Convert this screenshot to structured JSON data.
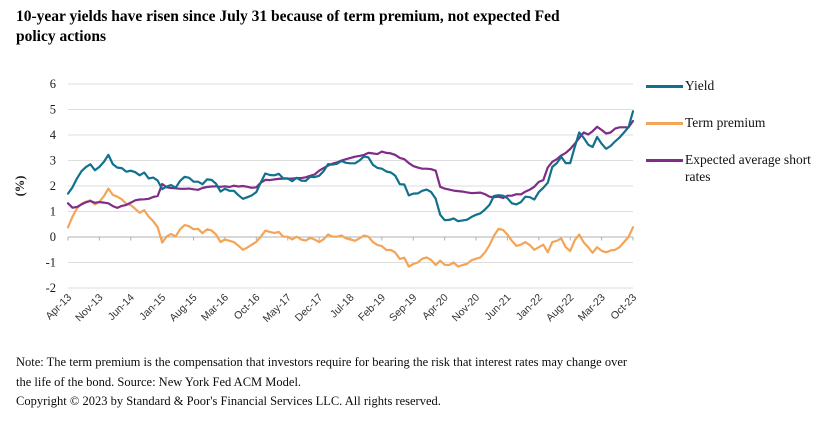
{
  "title": {
    "line1": "10-year yields have risen since July 31 because of term premium, not expected Fed",
    "line2": "policy actions"
  },
  "footer": {
    "note_line1": "Note: The term premium is the compensation that investors require for bearing the risk that interest rates may change over",
    "note_line2": "the life of the bond. Source: New York Fed ACM Model.",
    "copyright": "Copyright © 2023 by Standard & Poor's Financial Services LLC. All rights reserved."
  },
  "colors": {
    "yield": "#10718c",
    "term_premium": "#f3a457",
    "expected_short_rates": "#7f2d88",
    "gridline": "#dedede",
    "zero_axis": "#b0b0b0"
  },
  "chart_data": {
    "type": "line",
    "title": "10-year yields have risen since July 31 because of term premium, not expected Fed policy actions",
    "xlabel": "",
    "ylabel": "(%)",
    "ylim": [
      -2,
      6
    ],
    "yticks": [
      6,
      5,
      4,
      3,
      2,
      1,
      0,
      -1,
      -2
    ],
    "grid": true,
    "legend_position": "right",
    "x_frequency": "monthly",
    "x_range": "Apr-2013 to Oct-2023",
    "x_tick_labels": [
      "Apr-13",
      "Nov-13",
      "Jun-14",
      "Jan-15",
      "Aug-15",
      "Mar-16",
      "Oct-16",
      "May-17",
      "Dec-17",
      "Jul-18",
      "Feb-19",
      "Sep-19",
      "Apr-20",
      "Nov-20",
      "Jun-21",
      "Jan-22",
      "Aug-22",
      "Mar-23",
      "Oct-23"
    ],
    "x_label_interval_months": 7,
    "series": [
      {
        "name": "Yield",
        "color": "#10718c",
        "values": [
          1.7,
          1.95,
          2.3,
          2.58,
          2.74,
          2.85,
          2.62,
          2.75,
          2.95,
          3.22,
          2.86,
          2.72,
          2.7,
          2.56,
          2.6,
          2.54,
          2.42,
          2.53,
          2.3,
          2.33,
          2.21,
          1.88,
          1.98,
          2.04,
          1.93,
          2.2,
          2.36,
          2.32,
          2.17,
          2.17,
          2.07,
          2.26,
          2.24,
          2.09,
          1.78,
          1.89,
          1.81,
          1.81,
          1.64,
          1.5,
          1.56,
          1.63,
          1.76,
          2.14,
          2.49,
          2.43,
          2.42,
          2.48,
          2.3,
          2.3,
          2.19,
          2.32,
          2.21,
          2.2,
          2.36,
          2.35,
          2.4,
          2.58,
          2.86,
          2.84,
          2.87,
          2.98,
          2.91,
          2.89,
          2.89,
          3.0,
          3.16,
          3.12,
          2.83,
          2.71,
          2.68,
          2.57,
          2.53,
          2.4,
          2.07,
          2.06,
          1.63,
          1.7,
          1.71,
          1.81,
          1.86,
          1.76,
          1.5,
          0.87,
          0.66,
          0.67,
          0.73,
          0.62,
          0.65,
          0.68,
          0.79,
          0.87,
          0.93,
          1.08,
          1.26,
          1.61,
          1.64,
          1.62,
          1.52,
          1.32,
          1.28,
          1.37,
          1.58,
          1.56,
          1.47,
          1.76,
          1.93,
          2.13,
          2.75,
          2.9,
          3.14,
          2.9,
          2.9,
          3.52,
          4.1,
          3.89,
          3.62,
          3.53,
          3.92,
          3.66,
          3.46,
          3.57,
          3.75,
          3.9,
          4.1,
          4.3,
          4.93
        ]
      },
      {
        "name": "Term premium",
        "color": "#f3a457",
        "values": [
          0.38,
          0.8,
          1.12,
          1.3,
          1.38,
          1.44,
          1.28,
          1.38,
          1.6,
          1.9,
          1.65,
          1.58,
          1.48,
          1.3,
          1.25,
          1.1,
          0.95,
          1.05,
          0.8,
          0.62,
          0.38,
          -0.22,
          0.02,
          0.12,
          0.02,
          0.3,
          0.47,
          0.42,
          0.3,
          0.32,
          0.15,
          0.3,
          0.26,
          0.1,
          -0.2,
          -0.1,
          -0.15,
          -0.2,
          -0.34,
          -0.5,
          -0.41,
          -0.3,
          -0.19,
          0.01,
          0.25,
          0.2,
          0.16,
          0.2,
          0.01,
          0.01,
          -0.1,
          0.01,
          -0.1,
          -0.14,
          -0.04,
          -0.1,
          -0.2,
          -0.09,
          0.1,
          0.01,
          0.01,
          0.06,
          -0.05,
          -0.1,
          -0.15,
          -0.05,
          0.06,
          0.01,
          -0.2,
          -0.31,
          -0.36,
          -0.51,
          -0.51,
          -0.61,
          -0.86,
          -0.81,
          -1.16,
          -1.06,
          -1.0,
          -0.85,
          -0.8,
          -0.9,
          -1.1,
          -0.93,
          -1.09,
          -1.1,
          -1.0,
          -1.16,
          -1.1,
          -1.05,
          -0.91,
          -0.85,
          -0.8,
          -0.6,
          -0.32,
          0.05,
          0.32,
          0.28,
          0.1,
          -0.15,
          -0.35,
          -0.3,
          -0.2,
          -0.32,
          -0.5,
          -0.4,
          -0.3,
          -0.6,
          -0.2,
          -0.15,
          -0.06,
          -0.4,
          -0.55,
          -0.13,
          0.1,
          -0.21,
          -0.4,
          -0.62,
          -0.4,
          -0.54,
          -0.6,
          -0.53,
          -0.5,
          -0.4,
          -0.2,
          0.0,
          0.38
        ]
      },
      {
        "name": "Expected average short rates",
        "color": "#7f2d88",
        "values": [
          1.32,
          1.15,
          1.18,
          1.28,
          1.36,
          1.41,
          1.34,
          1.37,
          1.35,
          1.32,
          1.21,
          1.14,
          1.22,
          1.26,
          1.35,
          1.44,
          1.47,
          1.48,
          1.5,
          1.57,
          1.61,
          2.08,
          1.95,
          1.92,
          1.91,
          1.89,
          1.89,
          1.9,
          1.87,
          1.85,
          1.92,
          1.96,
          1.98,
          1.99,
          1.97,
          1.99,
          1.96,
          2.01,
          1.98,
          2.0,
          1.97,
          1.93,
          1.95,
          2.13,
          2.24,
          2.23,
          2.26,
          2.28,
          2.29,
          2.29,
          2.29,
          2.31,
          2.31,
          2.34,
          2.4,
          2.45,
          2.6,
          2.7,
          2.8,
          2.88,
          2.92,
          3.0,
          3.05,
          3.1,
          3.15,
          3.18,
          3.22,
          3.3,
          3.28,
          3.25,
          3.35,
          3.3,
          3.28,
          3.22,
          3.1,
          3.05,
          2.9,
          2.78,
          2.72,
          2.68,
          2.68,
          2.66,
          2.6,
          1.97,
          1.9,
          1.86,
          1.82,
          1.8,
          1.78,
          1.75,
          1.72,
          1.73,
          1.74,
          1.68,
          1.58,
          1.56,
          1.58,
          1.53,
          1.62,
          1.62,
          1.68,
          1.67,
          1.78,
          1.86,
          1.97,
          2.16,
          2.23,
          2.73,
          2.95,
          3.05,
          3.2,
          3.3,
          3.45,
          3.65,
          3.88,
          4.1,
          4.02,
          4.15,
          4.32,
          4.2,
          4.06,
          4.1,
          4.25,
          4.3,
          4.3,
          4.3,
          4.55
        ]
      }
    ]
  }
}
